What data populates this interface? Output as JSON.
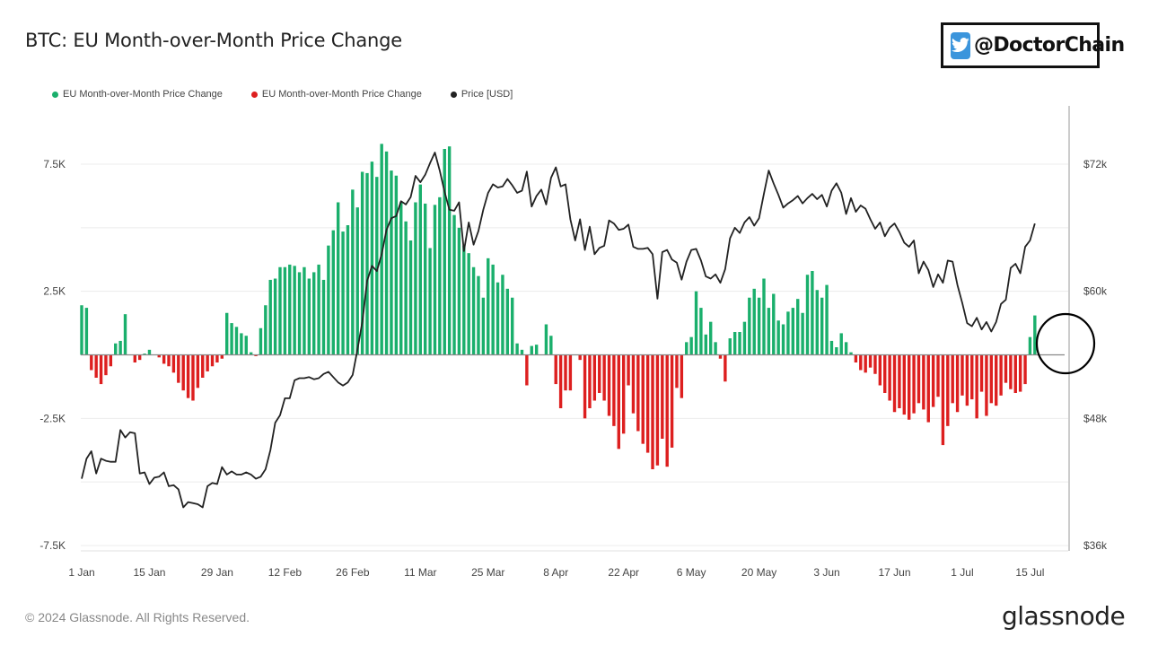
{
  "title": "BTC: EU Month-over-Month Price Change",
  "watermark": {
    "handle": "@DoctorChain",
    "icon": "bird-icon"
  },
  "footer": {
    "copyright": "© 2024 Glassnode. All Rights Reserved.",
    "brand": "glassnode"
  },
  "colors": {
    "positive": "#1aaf6c",
    "negative": "#dd1f1f",
    "price": "#222222",
    "grid": "#ececec",
    "axis": "#bbbbbb"
  },
  "chart_data": {
    "type": "bar",
    "title": "BTC: EU Month-over-Month Price Change",
    "legend": [
      {
        "label": "EU Month-over-Month Price Change",
        "color": "#1aaf6c"
      },
      {
        "label": "EU Month-over-Month Price Change",
        "color": "#dd1f1f"
      },
      {
        "label": "Price [USD]",
        "color": "#222222"
      }
    ],
    "legend_position": "top-left",
    "grid": true,
    "x_ticks": [
      "1 Jan",
      "15 Jan",
      "29 Jan",
      "12 Feb",
      "26 Feb",
      "11 Mar",
      "25 Mar",
      "8 Apr",
      "22 Apr",
      "6 May",
      "20 May",
      "3 Jun",
      "17 Jun",
      "1 Jul",
      "15 Jul"
    ],
    "x_range_days": [
      1,
      206
    ],
    "y_left": {
      "ticks": [
        "7.5K",
        "2.5K",
        "-2.5K",
        "-7.5K"
      ],
      "tick_values": [
        7500,
        2500,
        -2500,
        -7500
      ],
      "range": [
        -7500,
        7500
      ]
    },
    "y_right": {
      "ticks": [
        "$72k",
        "$60k",
        "$48k",
        "$36k"
      ],
      "tick_values": [
        72000,
        60000,
        48000,
        36000
      ],
      "range": [
        36000,
        72000
      ]
    },
    "bars": {
      "start": "1 Jan",
      "interval_days": 1,
      "values": [
        1950,
        1850,
        -600,
        -900,
        -1150,
        -800,
        -450,
        450,
        550,
        1600,
        0,
        -300,
        -200,
        50,
        200,
        0,
        -100,
        -350,
        -450,
        -700,
        -1100,
        -1400,
        -1700,
        -1800,
        -1300,
        -900,
        -650,
        -450,
        -300,
        -150,
        1650,
        1250,
        1100,
        850,
        750,
        100,
        -50,
        1050,
        1950,
        2950,
        3000,
        3450,
        3450,
        3550,
        3500,
        3250,
        3450,
        3000,
        3250,
        3550,
        2950,
        4300,
        4900,
        6000,
        4850,
        5100,
        6500,
        5800,
        7200,
        7150,
        7600,
        7000,
        8300,
        8000,
        7250,
        7050,
        6000,
        5250,
        4500,
        6000,
        6700,
        5950,
        4200,
        5900,
        6200,
        8100,
        8200,
        5500,
        5000,
        4300,
        4000,
        3450,
        3100,
        2250,
        3800,
        3550,
        2850,
        3150,
        2600,
        2250,
        450,
        200,
        -1200,
        350,
        400,
        0,
        1200,
        750,
        -1150,
        -2100,
        -1400,
        -1400,
        0,
        -200,
        -2500,
        -2100,
        -1800,
        -1500,
        -1800,
        -2400,
        -2800,
        -3700,
        -3100,
        -1200,
        -2300,
        -3000,
        -3500,
        -3850,
        -4500,
        -4350,
        -3300,
        -4400,
        -3650,
        -1300,
        -1700,
        500,
        700,
        2500,
        1850,
        800,
        1300,
        500,
        -150,
        -1050,
        650,
        900,
        900,
        1300,
        2250,
        2600,
        2250,
        3000,
        1850,
        2400,
        1350,
        1200,
        1700,
        1850,
        2200,
        1650,
        3150,
        3300,
        2550,
        2250,
        2750,
        550,
        300,
        850,
        500,
        100,
        -300,
        -600,
        -700,
        -500,
        -750,
        -1200,
        -1500,
        -1800,
        -2250,
        -2100,
        -2350,
        -2550,
        -2300,
        -1900,
        -2150,
        -2650,
        -2050,
        -1650,
        -3550,
        -2800,
        -1900,
        -2250,
        -1600,
        -2000,
        -1750,
        -2500,
        -1450,
        -2400,
        -1900,
        -2000,
        -1600,
        -1100,
        -1350,
        -1500,
        -1450,
        -1150,
        700,
        1550
      ]
    },
    "price": {
      "start": "1 Jan",
      "interval_days": 1,
      "values": [
        42300,
        44200,
        44900,
        42800,
        44200,
        44000,
        43900,
        43900,
        46900,
        46200,
        46700,
        46600,
        42800,
        42900,
        41800,
        42400,
        42500,
        42900,
        41600,
        41700,
        41300,
        39600,
        40100,
        40000,
        39900,
        39600,
        41600,
        41900,
        41800,
        43400,
        42700,
        43000,
        42700,
        42700,
        42900,
        42700,
        42300,
        42500,
        43200,
        45000,
        47600,
        48300,
        49900,
        49900,
        51600,
        51800,
        51800,
        51900,
        51700,
        51800,
        52200,
        52400,
        51900,
        51400,
        51100,
        51400,
        52100,
        54500,
        57100,
        61000,
        62400,
        61900,
        63500,
        65800,
        66900,
        67100,
        68500,
        68200,
        68900,
        70900,
        70300,
        71000,
        72100,
        73100,
        71400,
        69400,
        67700,
        67600,
        68400,
        63800,
        66500,
        64400,
        65700,
        67700,
        69300,
        70100,
        69800,
        69900,
        70600,
        70000,
        69300,
        69500,
        71300,
        68000,
        69000,
        69600,
        68200,
        70700,
        71700,
        69900,
        70100,
        66800,
        64800,
        66800,
        63900,
        66100,
        63500,
        64100,
        64300,
        66700,
        66400,
        65800,
        65900,
        66300,
        64200,
        64000,
        64000,
        64100,
        63500,
        59300,
        63700,
        63900,
        63000,
        62700,
        61100,
        62800,
        63900,
        64000,
        62900,
        61400,
        61200,
        61600,
        60800,
        62100,
        65000,
        66000,
        65500,
        66500,
        67000,
        66200,
        66900,
        69200,
        71400,
        70200,
        69100,
        67900,
        68300,
        68600,
        69000,
        68300,
        68800,
        69200,
        68700,
        69100,
        68000,
        69500,
        70200,
        69300,
        67300,
        68800,
        67500,
        68100,
        67800,
        66800,
        65900,
        66500,
        65200,
        66000,
        66400,
        65600,
        64600,
        64200,
        64800,
        61700,
        62800,
        62000,
        60400,
        61600,
        60800,
        62900,
        62800,
        60600,
        58900,
        57000,
        56700,
        57500,
        56400,
        57100,
        56200,
        57100,
        58800,
        59200,
        62200,
        62600,
        61700,
        64200,
        64800,
        66400
      ]
    }
  }
}
